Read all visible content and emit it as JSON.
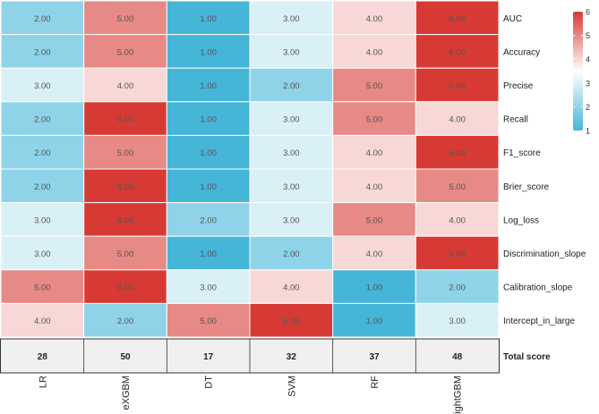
{
  "chart_data": {
    "type": "heatmap",
    "title": "",
    "columns": [
      "LR",
      "eXGBM",
      "DT",
      "SVM",
      "RF",
      "LightGBM"
    ],
    "rows": [
      "AUC",
      "Accuracy",
      "Precise",
      "Recall",
      "F1_score",
      "Brier_score",
      "Log_loss",
      "Discrimination_slope",
      "Calibration_slope",
      "Intercept_in_large"
    ],
    "values": [
      [
        2,
        5,
        1,
        3,
        4,
        6
      ],
      [
        2,
        5,
        1,
        3,
        4,
        6
      ],
      [
        3,
        4,
        1,
        2,
        5,
        6
      ],
      [
        2,
        6,
        1,
        3,
        5,
        4
      ],
      [
        2,
        5,
        1,
        3,
        4,
        6
      ],
      [
        2,
        6,
        1,
        3,
        4,
        5
      ],
      [
        3,
        6,
        2,
        3,
        5,
        4
      ],
      [
        3,
        5,
        1,
        2,
        4,
        6
      ],
      [
        5,
        6,
        3,
        4,
        1,
        2
      ],
      [
        4,
        2,
        5,
        6,
        1,
        3
      ]
    ],
    "total_label": "Total score",
    "totals": [
      28,
      50,
      17,
      32,
      37,
      48
    ],
    "color_scale": {
      "min": 1,
      "mid": 3.5,
      "max": 6,
      "low_color": "#45b5d8",
      "mid_color": "#ffffff",
      "high_color": "#d73a34"
    },
    "legend": {
      "ticks": [
        1,
        2,
        3,
        4,
        5,
        6
      ],
      "position": "right"
    },
    "total_fill": "#f0f0f0"
  }
}
